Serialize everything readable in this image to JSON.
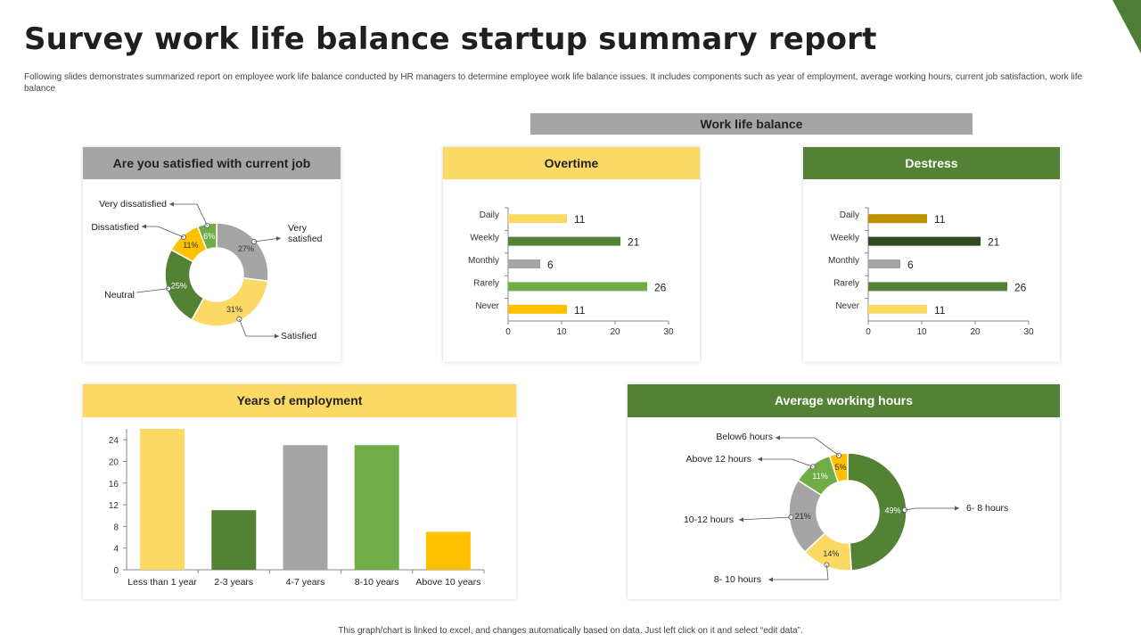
{
  "page": {
    "title": "Survey work life balance startup summary report",
    "subtitle": "Following slides demonstrates summarized report on employee work life balance conducted by HR managers to determine employee work life balance issues. It includes components such as year of employment, average working hours, current job satisfaction, work life balance",
    "work_life_balance_label": "Work life balance",
    "footer": "This graph/chart is linked to excel, and changes automatically based on data. Just left click on it and select “edit data”.",
    "accent_color": "#4e7d34"
  },
  "chart_data": [
    {
      "id": "satisfaction",
      "type": "pie",
      "title": "Are you satisfied with current job",
      "labels": [
        "Very satisfied",
        "Satisfied",
        "Neutral",
        "Dissatisfied",
        "Very dissatisfied"
      ],
      "values": [
        27,
        31,
        25,
        11,
        6
      ],
      "value_labels": [
        "27%",
        "31%",
        "25%",
        "11%",
        "6%"
      ],
      "colors": [
        "#a5a5a5",
        "#fcd965",
        "#548235",
        "#ffc000",
        "#70ad47"
      ]
    },
    {
      "id": "overtime",
      "type": "bar",
      "orientation": "horizontal",
      "title": "Overtime",
      "categories": [
        "Daily",
        "Weekly",
        "Monthly",
        "Rarely",
        "Never"
      ],
      "values": [
        11,
        21,
        6,
        26,
        11
      ],
      "colors": [
        "#fcd965",
        "#548235",
        "#a5a5a5",
        "#70ad47",
        "#ffc000"
      ],
      "xlim": [
        0,
        30
      ],
      "xticks": [
        0,
        10,
        20,
        30
      ]
    },
    {
      "id": "destress",
      "type": "bar",
      "orientation": "horizontal",
      "title": "Destress",
      "categories": [
        "Daily",
        "Weekly",
        "Monthly",
        "Rarely",
        "Never"
      ],
      "values": [
        11,
        21,
        6,
        26,
        11
      ],
      "colors": [
        "#bf9000",
        "#2f4a1f",
        "#a5a5a5",
        "#548235",
        "#fcd965"
      ],
      "xlim": [
        0,
        30
      ],
      "xticks": [
        0,
        10,
        20,
        30
      ]
    },
    {
      "id": "years",
      "type": "bar",
      "orientation": "vertical",
      "title": "Years of employment",
      "categories": [
        "Less than 1 year",
        "2-3 years",
        "4-7 years",
        "8-10 years",
        "Above 10 years"
      ],
      "values": [
        26,
        11,
        23,
        23,
        7
      ],
      "colors": [
        "#fcd965",
        "#548235",
        "#a5a5a5",
        "#70ad47",
        "#ffc000"
      ],
      "ylim": [
        0,
        26
      ],
      "yticks": [
        0,
        4,
        8,
        12,
        16,
        20,
        24
      ]
    },
    {
      "id": "hours",
      "type": "pie",
      "title": "Average working hours",
      "labels": [
        "6- 8 hours",
        "8- 10 hours",
        "10-12 hours",
        "Above 12 hours",
        "Below6 hours"
      ],
      "values": [
        49,
        14,
        21,
        11,
        5
      ],
      "value_labels": [
        "49%",
        "14%",
        "21%",
        "11%",
        "5%"
      ],
      "colors": [
        "#548235",
        "#fcd965",
        "#a5a5a5",
        "#70ad47",
        "#ffc000"
      ]
    }
  ]
}
